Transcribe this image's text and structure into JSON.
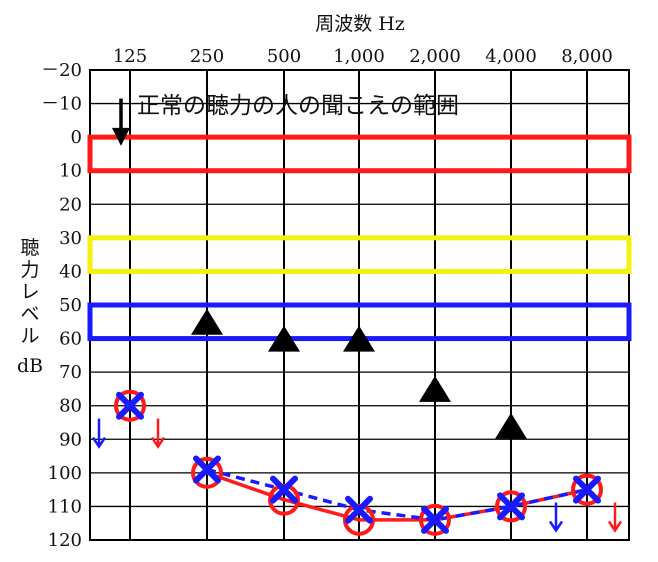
{
  "chart_data": {
    "type": "scatter",
    "title": "",
    "xlabel": "周波数 Hz",
    "ylabel_chars": [
      "聴",
      "力",
      "レ",
      "ベ",
      "ル"
    ],
    "ylabel_unit": "dB",
    "x_ticks": [
      "125",
      "250",
      "500",
      "1,000",
      "2,000",
      "4,000",
      "8,000"
    ],
    "y_ticks": [
      "－20",
      "－10",
      "0",
      "10",
      "20",
      "30",
      "40",
      "50",
      "60",
      "70",
      "80",
      "90",
      "100",
      "110",
      "120"
    ],
    "ylim": [
      -20,
      120
    ],
    "y_inverted": true,
    "grid": true,
    "annotation": "正常の聴力の人の聞こえの範囲",
    "bands": [
      {
        "from": 0,
        "to": 10,
        "color": "#ff1a1a"
      },
      {
        "from": 30,
        "to": 40,
        "color": "#f2f20d"
      },
      {
        "from": 50,
        "to": 60,
        "color": "#1a1aff"
      }
    ],
    "series": [
      {
        "marker": "circle",
        "color": "#ff1a1a",
        "line": "solid",
        "points": [
          [
            "125",
            80
          ],
          [
            "250",
            100
          ],
          [
            "500",
            108
          ],
          [
            "1,000",
            114
          ],
          [
            "2,000",
            114
          ],
          [
            "4,000",
            110
          ],
          [
            "8,000",
            105
          ]
        ],
        "connect_from": 1,
        "scale_out_at": [
          "125",
          "8,000"
        ]
      },
      {
        "marker": "cross",
        "color": "#1a1aff",
        "line": "dashed",
        "points": [
          [
            "125",
            80
          ],
          [
            "250",
            99
          ],
          [
            "500",
            105
          ],
          [
            "1,000",
            111
          ],
          [
            "2,000",
            114
          ],
          [
            "4,000",
            110
          ],
          [
            "8,000",
            105
          ]
        ],
        "connect_from": 1,
        "scale_out_at": [
          "125",
          "8,000"
        ]
      },
      {
        "marker": "triangle",
        "color": "#000000",
        "points": [
          [
            "250",
            55
          ],
          [
            "500",
            60
          ],
          [
            "1,000",
            60
          ],
          [
            "2,000",
            75
          ],
          [
            "4,000",
            86
          ]
        ]
      }
    ],
    "scale_out_arrows": [
      {
        "x": "125",
        "color": "#1a1aff",
        "side": "left",
        "y": 88
      },
      {
        "x": "125",
        "color": "#ff1a1a",
        "side": "right",
        "y": 88
      },
      {
        "x": "8,000",
        "color": "#1a1aff",
        "side": "left",
        "y": 113
      },
      {
        "x": "8,000",
        "color": "#ff1a1a",
        "side": "right",
        "y": 113
      }
    ],
    "pointer_arrow": {
      "x": "125",
      "from": -10,
      "to": 2,
      "color": "#000000"
    }
  }
}
